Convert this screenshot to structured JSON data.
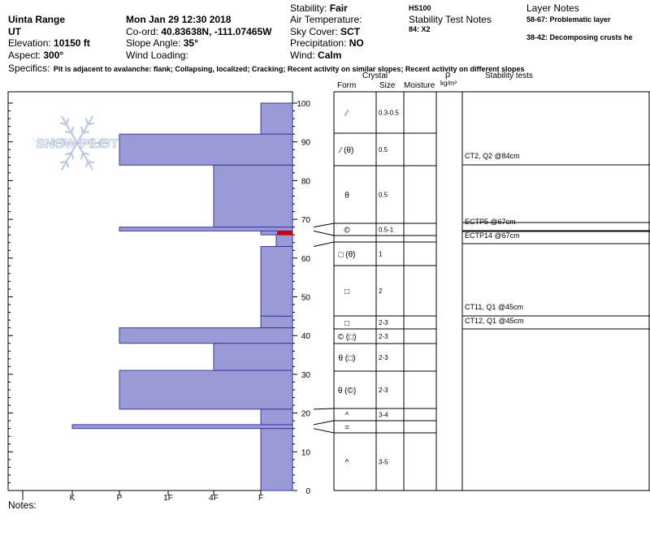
{
  "header": {
    "location": "Uinta Range",
    "state": "UT",
    "elevation_label": "Elevation:",
    "elevation_value": "10150 ft",
    "aspect_label": "Aspect:",
    "aspect_value": "300°",
    "datetime": "Mon Jan 29 12:30 2018",
    "coord_label": "Co-ord:",
    "coord_value": "40.83638N, -111.07465W",
    "slope_label": "Slope Angle:",
    "slope_value": "35°",
    "wind_loading_label": "Wind Loading:",
    "stability_label": "Stability:",
    "stability_value": "Fair",
    "air_temp_label": "Air Temperature:",
    "sky_cover_label": "Sky Cover:",
    "sky_cover_value": "SCT",
    "precip_label": "Precipitation:",
    "precip_value": "NO",
    "wind_label": "Wind:",
    "wind_value": "Calm",
    "hs": "HS100",
    "stability_notes_label": "Stability Test Notes",
    "stability_note_1": "84: X2",
    "layer_notes_label": "Layer Notes",
    "layer_note_1": "58-67: Problematic layer",
    "layer_note_2": "38-42: Decomposing crusts he",
    "specifics_label": "Specifics:",
    "specifics_value": "Pit is adjacent to avalanche: flank; Collapsing, localized; Cracking; Recent activity on similar slopes; Recent activity on different slopes",
    "notes_label": "Notes:"
  },
  "table_header": {
    "crystal": "Crystal",
    "form": "Form",
    "size": "Size",
    "moisture": "Moisture",
    "rho": "ρ",
    "rho_unit": "kg/m³",
    "stability_tests": "Stability tests"
  },
  "watermark": "SNOW PILOT",
  "colors": {
    "bar_fill": "#9a9ad6",
    "bar_stroke": "#3a3a9a",
    "weak_layer": "#cc0000",
    "watermark": "#b8c8e0"
  },
  "chart_data": {
    "type": "bar",
    "title": "",
    "xlabel": "",
    "ylabel": "",
    "ylim": [
      0,
      100
    ],
    "y_ticks": [
      0,
      10,
      20,
      30,
      40,
      50,
      60,
      70,
      80,
      90,
      100
    ],
    "hardness_ticks": [
      "I",
      "K",
      "P",
      "1F",
      "4F",
      "F"
    ],
    "hardness_profile": [
      {
        "top": 100,
        "bottom": 92,
        "hardness": "F"
      },
      {
        "top": 92,
        "bottom": 84,
        "hardness": "P"
      },
      {
        "top": 84,
        "bottom": 68,
        "hardness": "4F"
      },
      {
        "top": 68,
        "bottom": 67,
        "hardness": "P"
      },
      {
        "top": 67,
        "bottom": 66,
        "hardness": "F"
      },
      {
        "top": 66,
        "bottom": 63,
        "hardness": "F-"
      },
      {
        "top": 63,
        "bottom": 45,
        "hardness": "F"
      },
      {
        "top": 45,
        "bottom": 42,
        "hardness": "F"
      },
      {
        "top": 42,
        "bottom": 38,
        "hardness": "P"
      },
      {
        "top": 38,
        "bottom": 31,
        "hardness": "4F"
      },
      {
        "top": 31,
        "bottom": 21,
        "hardness": "P"
      },
      {
        "top": 21,
        "bottom": 17,
        "hardness": "F"
      },
      {
        "top": 17,
        "bottom": 16,
        "hardness": "K"
      },
      {
        "top": 16,
        "bottom": 0,
        "hardness": "F"
      }
    ],
    "weak_layer": {
      "top": 67,
      "bottom": 66
    },
    "layers": [
      {
        "top": 100,
        "bottom": 92,
        "form": "⁄",
        "size": "0.3-0.5"
      },
      {
        "top": 92,
        "bottom": 84,
        "form": "⁄ (θ)",
        "size": "0.5"
      },
      {
        "top": 84,
        "bottom": 68,
        "form": "θ",
        "size": "0.5"
      },
      {
        "top": 68,
        "bottom": 67,
        "form": "©",
        "size": "0.5-1"
      },
      {
        "top": 63,
        "bottom": 58,
        "form": "□ (θ)",
        "size": "1"
      },
      {
        "top": 58,
        "bottom": 45,
        "form": "□",
        "size": "2"
      },
      {
        "top": 45,
        "bottom": 42,
        "form": "□",
        "size": "2-3"
      },
      {
        "top": 42,
        "bottom": 38,
        "form": "© (□)",
        "size": "2-3"
      },
      {
        "top": 38,
        "bottom": 31,
        "form": "θ (□)",
        "size": "2-3"
      },
      {
        "top": 31,
        "bottom": 21,
        "form": "θ (©)",
        "size": "2-3"
      },
      {
        "top": 21,
        "bottom": 17,
        "form": "^",
        "size": "3-4"
      },
      {
        "top": 17,
        "bottom": 16,
        "form": "=",
        "size": ""
      },
      {
        "top": 16,
        "bottom": 0,
        "form": "^",
        "size": "3-5"
      }
    ],
    "stability_tests": [
      {
        "depth": 84,
        "text": "CT2, Q2 @84cm"
      },
      {
        "depth": 67,
        "text": "ECTP5 @67cm"
      },
      {
        "depth": 67,
        "text": "ECTP14 @67cm"
      },
      {
        "depth": 45,
        "text": "CT11, Q1 @45cm"
      },
      {
        "depth": 45,
        "text": "CT12, Q1 @45cm"
      }
    ]
  }
}
